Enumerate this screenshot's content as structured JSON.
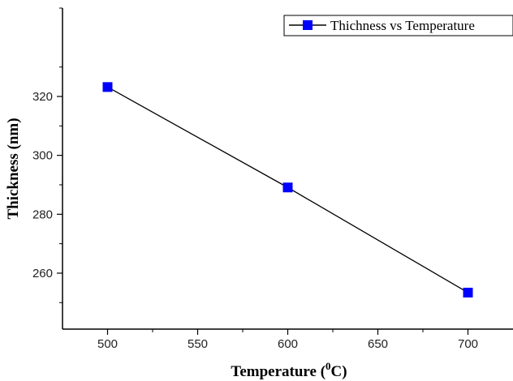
{
  "chart_data": {
    "type": "line",
    "xlabel": "Temperature (",
    "xlabel_sup": "0",
    "xlabel_suffix": "C)",
    "ylabel": "Thickness (nm)",
    "xlim": [
      475,
      725
    ],
    "ylim": [
      241,
      350
    ],
    "x_ticks": [
      500,
      550,
      600,
      650,
      700
    ],
    "y_ticks": [
      260,
      280,
      300,
      320
    ],
    "series": [
      {
        "name": "Thichness vs Temperature",
        "color": "#0000ff",
        "line_color": "#000000",
        "marker": "square",
        "x": [
          500,
          600,
          700
        ],
        "y": [
          323.2,
          289.1,
          253.4
        ]
      }
    ],
    "legend": {
      "position": "top-right"
    },
    "grid": false
  }
}
